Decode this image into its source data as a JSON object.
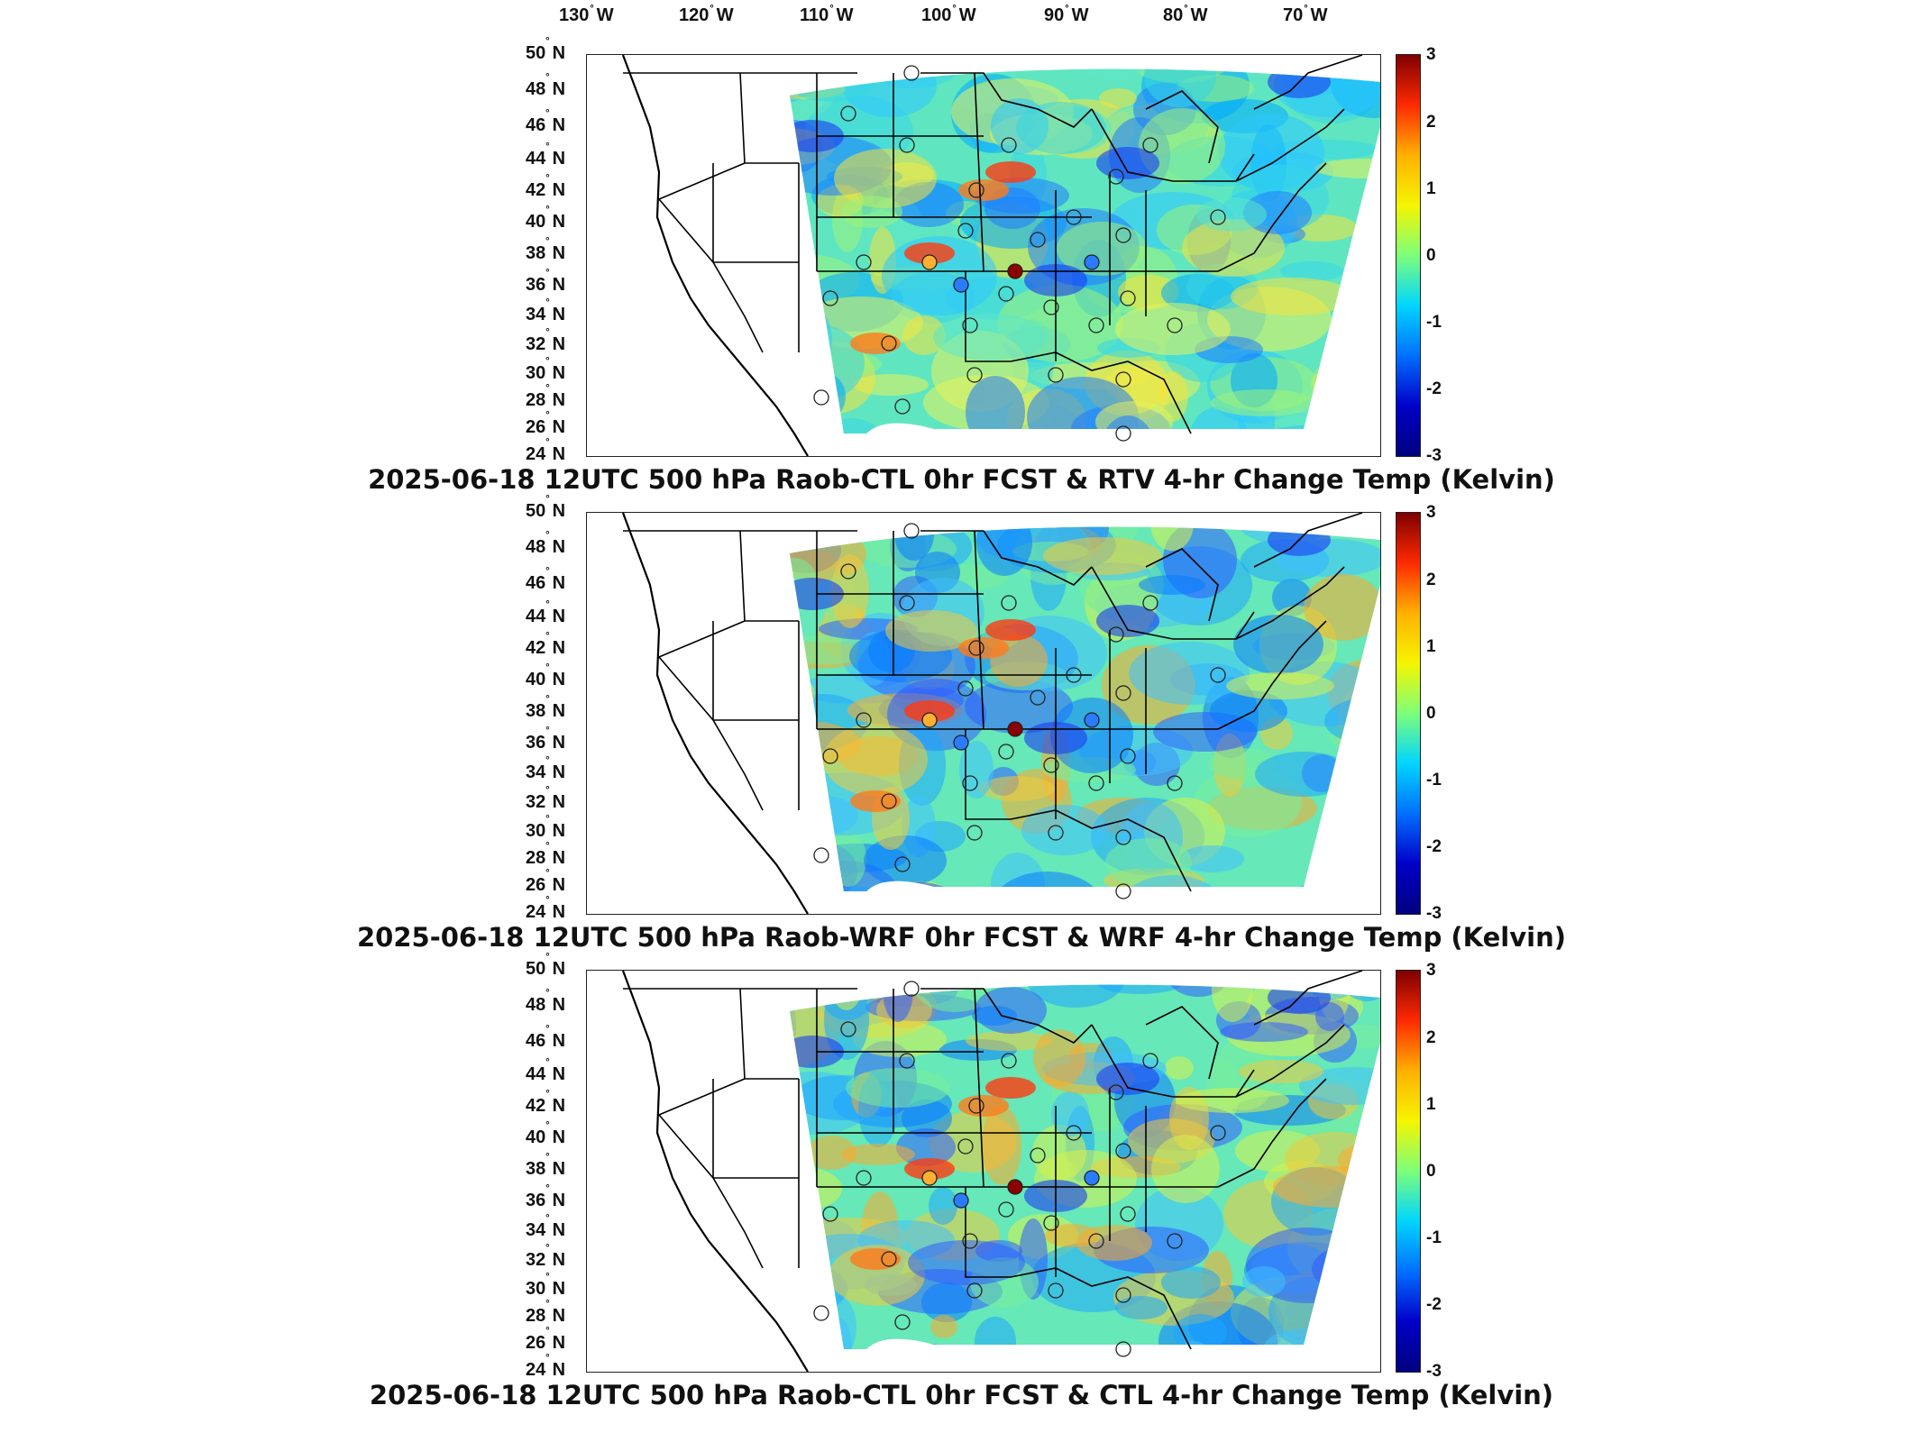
{
  "longitude_labels": [
    {
      "deg": "130",
      "hemi": "W"
    },
    {
      "deg": "120",
      "hemi": "W"
    },
    {
      "deg": "110",
      "hemi": "W"
    },
    {
      "deg": "100",
      "hemi": "W"
    },
    {
      "deg": "90",
      "hemi": "W"
    },
    {
      "deg": "80",
      "hemi": "W"
    },
    {
      "deg": "70",
      "hemi": "W"
    }
  ],
  "latitude_labels": [
    {
      "deg": "50",
      "hemi": "N"
    },
    {
      "deg": "48",
      "hemi": "N"
    },
    {
      "deg": "46",
      "hemi": "N"
    },
    {
      "deg": "44",
      "hemi": "N"
    },
    {
      "deg": "42",
      "hemi": "N"
    },
    {
      "deg": "40",
      "hemi": "N"
    },
    {
      "deg": "38",
      "hemi": "N"
    },
    {
      "deg": "36",
      "hemi": "N"
    },
    {
      "deg": "34",
      "hemi": "N"
    },
    {
      "deg": "32",
      "hemi": "N"
    },
    {
      "deg": "30",
      "hemi": "N"
    },
    {
      "deg": "28",
      "hemi": "N"
    },
    {
      "deg": "26",
      "hemi": "N"
    },
    {
      "deg": "24",
      "hemi": "N"
    }
  ],
  "colorbar": {
    "ticks": [
      "3",
      "2",
      "1",
      "0",
      "-1",
      "-2",
      "-3"
    ],
    "colors": [
      "#7f0000",
      "#ff2a00",
      "#ffb000",
      "#f5f500",
      "#7dff7a",
      "#00d5ff",
      "#0070ff",
      "#0000c8",
      "#00007f"
    ]
  },
  "panels": [
    {
      "title": "2025-06-18 12UTC 500 hPa Raob-CTL 0hr FCST & RTV 4-hr Change Temp (Kelvin)"
    },
    {
      "title": "2025-06-18 12UTC 500 hPa Raob-WRF 0hr FCST & WRF 4-hr Change Temp (Kelvin)"
    },
    {
      "title": "2025-06-18 12UTC 500 hPa Raob-CTL 0hr FCST & CTL 4-hr Change Temp (Kelvin)"
    }
  ]
}
